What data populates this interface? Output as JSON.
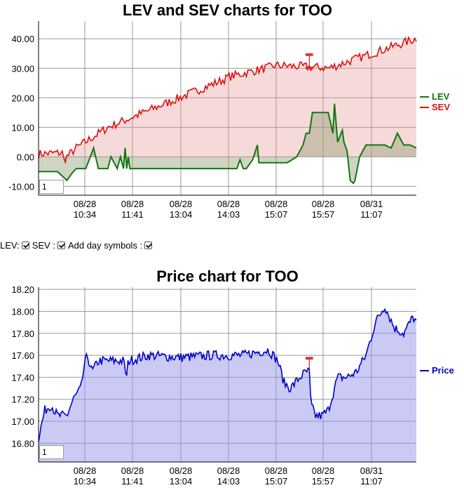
{
  "chart_data": [
    {
      "type": "line",
      "title": "LEV and SEV charts for TOO",
      "ylim": [
        -13,
        46
      ],
      "yticks": [
        "40.00",
        "30.00",
        "20.00",
        "10.00",
        "0.00",
        "-10.00"
      ],
      "ytick_values": [
        40,
        30,
        20,
        10,
        0,
        -10
      ],
      "xticks": [
        {
          "date": "08/28",
          "time": "10:34"
        },
        {
          "date": "08/28",
          "time": "11:41"
        },
        {
          "date": "08/28",
          "time": "13:04"
        },
        {
          "date": "08/28",
          "time": "14:03"
        },
        {
          "date": "08/28",
          "time": "15:07"
        },
        {
          "date": "08/28",
          "time": "15:57"
        },
        {
          "date": "08/31",
          "time": "11:07"
        }
      ],
      "grid": true,
      "legend_position": "right",
      "zoom_value": "1",
      "series": [
        {
          "name": "LEV",
          "color": "#117711",
          "fill": "rgba(120,170,130,0.35)",
          "x": [
            0,
            0.15,
            0.6,
            0.9,
            1.1,
            1.2,
            1.5,
            1.75,
            1.9,
            2.2,
            2.3,
            2.5,
            2.6,
            2.7,
            2.75,
            2.8,
            2.85,
            2.9,
            3.0,
            3.3,
            3.32,
            3.5,
            3.6,
            3.7,
            3.8,
            4.0,
            4.2,
            4.6,
            5.0,
            5.5,
            5.9,
            6.0,
            6.2,
            6.3,
            6.4,
            6.5,
            6.6,
            6.8,
            6.95,
            7.0,
            7.2,
            7.45,
            7.5,
            7.8,
            7.9,
            8.2,
            8.4,
            8.5,
            8.6,
            8.7,
            8.8,
            8.85,
            8.9,
            9.0,
            9.1,
            9.2,
            9.35,
            9.4,
            9.5,
            9.65,
            9.7,
            9.8,
            9.9,
            10.0,
            10.05,
            10.2,
            10.4,
            10.6,
            10.8,
            11.0,
            11.2,
            11.4,
            11.6,
            11.8,
            12.0
          ],
          "y": [
            -5,
            -5,
            -5,
            -8,
            -5,
            -4,
            -4,
            3,
            -4,
            -4,
            0,
            -4,
            0,
            -4,
            3,
            -4,
            0,
            -4,
            -4,
            -4,
            -4,
            -4,
            -4,
            -4,
            -4,
            -4,
            -4,
            -4,
            -4,
            -4,
            -4,
            -4,
            -4,
            -4,
            -1,
            -4,
            -4,
            -1,
            4,
            -2,
            -2,
            -2,
            -2,
            -2,
            -2,
            0,
            4,
            8,
            8,
            15,
            15,
            15,
            15,
            15,
            15,
            15,
            8,
            18,
            5,
            9,
            5,
            2,
            -8,
            -9,
            -8,
            0,
            4,
            4,
            4,
            4,
            3,
            8,
            4,
            4,
            3
          ],
          "notes": "approximate"
        },
        {
          "name": "SEV",
          "color": "#dd1111",
          "fill": "rgba(230,150,150,0.35)",
          "x": [],
          "y": []
        }
      ]
    },
    {
      "type": "area",
      "title": "Price chart for TOO",
      "ylim": [
        16.63,
        18.22
      ],
      "yticks": [
        "18.20",
        "18.00",
        "17.80",
        "17.60",
        "17.40",
        "17.20",
        "17.00",
        "16.80"
      ],
      "ytick_values": [
        18.2,
        18.0,
        17.8,
        17.6,
        17.4,
        17.2,
        17.0,
        16.8
      ],
      "xticks": [
        {
          "date": "08/28",
          "time": "10:34"
        },
        {
          "date": "08/28",
          "time": "11:41"
        },
        {
          "date": "08/28",
          "time": "13:04"
        },
        {
          "date": "08/28",
          "time": "14:03"
        },
        {
          "date": "08/28",
          "time": "15:07"
        },
        {
          "date": "08/28",
          "time": "15:57"
        },
        {
          "date": "08/31",
          "time": "11:07"
        }
      ],
      "grid": true,
      "legend_position": "right",
      "zoom_value": "1",
      "series": [
        {
          "name": "Price",
          "color": "#0000cc",
          "fill": "rgba(150,150,235,0.5)"
        }
      ]
    }
  ],
  "controls": {
    "lev_label": "LEV:",
    "sev_label": "SEV :",
    "day_symbols_label": "Add day symbols :"
  }
}
